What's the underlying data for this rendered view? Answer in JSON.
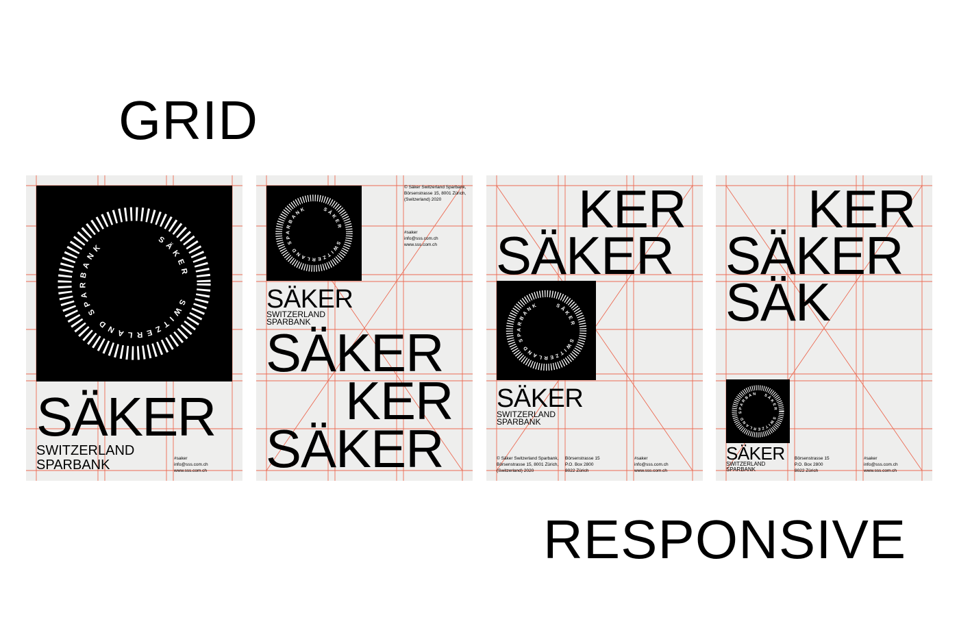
{
  "headings": {
    "grid": "GRID",
    "responsive": "RESPONSIVE"
  },
  "brand": {
    "name": "SÄKER",
    "subtitle_line1": "SWITZERLAND",
    "subtitle_line2": "SPARBANK",
    "ring_top": "SÄKER",
    "ring_bottom": "SWITZERLAND SPARBANK"
  },
  "fragments": {
    "ker": "KER",
    "sak": "SÄK"
  },
  "contact": {
    "handle": "#saker",
    "email": "info@sss.com.ch",
    "web": "www.sss.com.ch"
  },
  "address_long": {
    "line1": "© Säker Switzerland Sparbank,",
    "line2": "Börsenstrasse 15, 8001 Zürich,",
    "line3": "(Switzerland) 2020"
  },
  "address_short": {
    "line1": "Börsenstrasse 15",
    "line2": "P.O. Box 2800",
    "line3": "8022 Zürich"
  },
  "colors": {
    "grid_lines": "#ec6a52",
    "poster_bg": "#eeeeed",
    "block": "#000000"
  }
}
